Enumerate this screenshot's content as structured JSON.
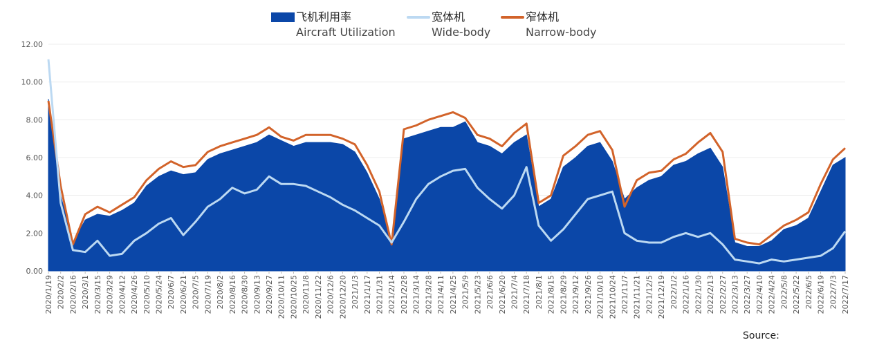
{
  "legend": {
    "util": {
      "zh": "飞机利用率",
      "en": "Aircraft Utilization",
      "color": "#0b47a8"
    },
    "wide": {
      "zh": "宽体机",
      "en": "Wide-body",
      "color": "#bcd9f2"
    },
    "narrow": {
      "zh": "窄体机",
      "en": "Narrow-body",
      "color": "#d2632a"
    }
  },
  "source_label": "Source:",
  "chart_data": {
    "type": "area",
    "title": "",
    "xlabel": "",
    "ylabel": "",
    "ylim": [
      0,
      12
    ],
    "grid": true,
    "legend_position": "top-center",
    "ytick_labels": [
      "0.00",
      "2.00",
      "4.00",
      "6.00",
      "8.00",
      "10.00",
      "12.00"
    ],
    "x": [
      "2020/1/19",
      "2020/2/2",
      "2020/2/16",
      "2020/3/1",
      "2020/3/15",
      "2020/3/29",
      "2020/4/12",
      "2020/4/26",
      "2020/5/10",
      "2020/5/24",
      "2020/6/7",
      "2020/6/21",
      "2020/7/5",
      "2020/7/19",
      "2020/8/2",
      "2020/8/16",
      "2020/8/30",
      "2020/9/13",
      "2020/9/27",
      "2020/10/11",
      "2020/10/25",
      "2020/11/8",
      "2020/11/22",
      "2020/12/6",
      "2020/12/20",
      "2021/1/3",
      "2021/1/17",
      "2021/1/31",
      "2021/2/14",
      "2021/2/28",
      "2021/3/14",
      "2021/3/28",
      "2021/4/11",
      "2021/4/25",
      "2021/5/9",
      "2021/5/23",
      "2021/6/6",
      "2021/6/20",
      "2021/7/4",
      "2021/7/18",
      "2021/8/1",
      "2021/8/15",
      "2021/8/29",
      "2021/9/12",
      "2021/9/26",
      "2021/10/10",
      "2021/10/24",
      "2021/11/7",
      "2021/11/21",
      "2021/12/5",
      "2021/12/19",
      "2022/1/2",
      "2022/1/16",
      "2022/1/30",
      "2022/2/13",
      "2022/2/27",
      "2022/3/13",
      "2022/3/27",
      "2022/4/10",
      "2022/4/24",
      "2022/5/8",
      "2022/5/22",
      "2022/6/5",
      "2022/6/19",
      "2022/7/3",
      "2022/7/17"
    ],
    "series": [
      {
        "name": "飞机利用率 Aircraft Utilization",
        "values": [
          9.1,
          4.0,
          1.5,
          2.7,
          3.0,
          2.9,
          3.2,
          3.6,
          4.5,
          5.0,
          5.3,
          5.1,
          5.2,
          5.9,
          6.2,
          6.4,
          6.6,
          6.8,
          7.2,
          6.9,
          6.6,
          6.8,
          6.8,
          6.8,
          6.7,
          6.3,
          5.2,
          3.8,
          1.5,
          7.0,
          7.2,
          7.4,
          7.6,
          7.6,
          7.9,
          6.8,
          6.6,
          6.2,
          6.8,
          7.2,
          3.4,
          3.8,
          5.5,
          6.0,
          6.6,
          6.8,
          5.8,
          3.8,
          4.4,
          4.8,
          5.0,
          5.6,
          5.8,
          6.2,
          6.5,
          5.5,
          1.5,
          1.3,
          1.3,
          1.6,
          2.2,
          2.4,
          2.8,
          4.2,
          5.6,
          6.0
        ]
      },
      {
        "name": "宽体机 Wide-body",
        "values": [
          11.2,
          3.6,
          1.1,
          1.0,
          1.6,
          0.8,
          0.9,
          1.6,
          2.0,
          2.5,
          2.8,
          1.9,
          2.6,
          3.4,
          3.8,
          4.4,
          4.1,
          4.3,
          5.0,
          4.6,
          4.6,
          4.5,
          4.2,
          3.9,
          3.5,
          3.2,
          2.8,
          2.4,
          1.5,
          2.6,
          3.8,
          4.6,
          5.0,
          5.3,
          5.4,
          4.4,
          3.8,
          3.3,
          4.0,
          5.5,
          2.4,
          1.6,
          2.2,
          3.0,
          3.8,
          4.0,
          4.2,
          2.0,
          1.6,
          1.5,
          1.5,
          1.8,
          2.0,
          1.8,
          2.0,
          1.4,
          0.6,
          0.5,
          0.4,
          0.6,
          0.5,
          0.6,
          0.7,
          0.8,
          1.2,
          2.1
        ]
      },
      {
        "name": "窄体机 Narrow-body",
        "values": [
          9.0,
          4.5,
          1.4,
          3.0,
          3.4,
          3.1,
          3.5,
          3.9,
          4.8,
          5.4,
          5.8,
          5.5,
          5.6,
          6.3,
          6.6,
          6.8,
          7.0,
          7.2,
          7.6,
          7.1,
          6.9,
          7.2,
          7.2,
          7.2,
          7.0,
          6.7,
          5.6,
          4.2,
          1.4,
          7.5,
          7.7,
          8.0,
          8.2,
          8.4,
          8.1,
          7.2,
          7.0,
          6.6,
          7.3,
          7.8,
          3.6,
          4.0,
          6.1,
          6.6,
          7.2,
          7.4,
          6.4,
          3.4,
          4.8,
          5.2,
          5.3,
          5.9,
          6.2,
          6.8,
          7.3,
          6.3,
          1.7,
          1.5,
          1.4,
          1.9,
          2.4,
          2.7,
          3.1,
          4.6,
          5.9,
          6.5
        ]
      }
    ]
  }
}
